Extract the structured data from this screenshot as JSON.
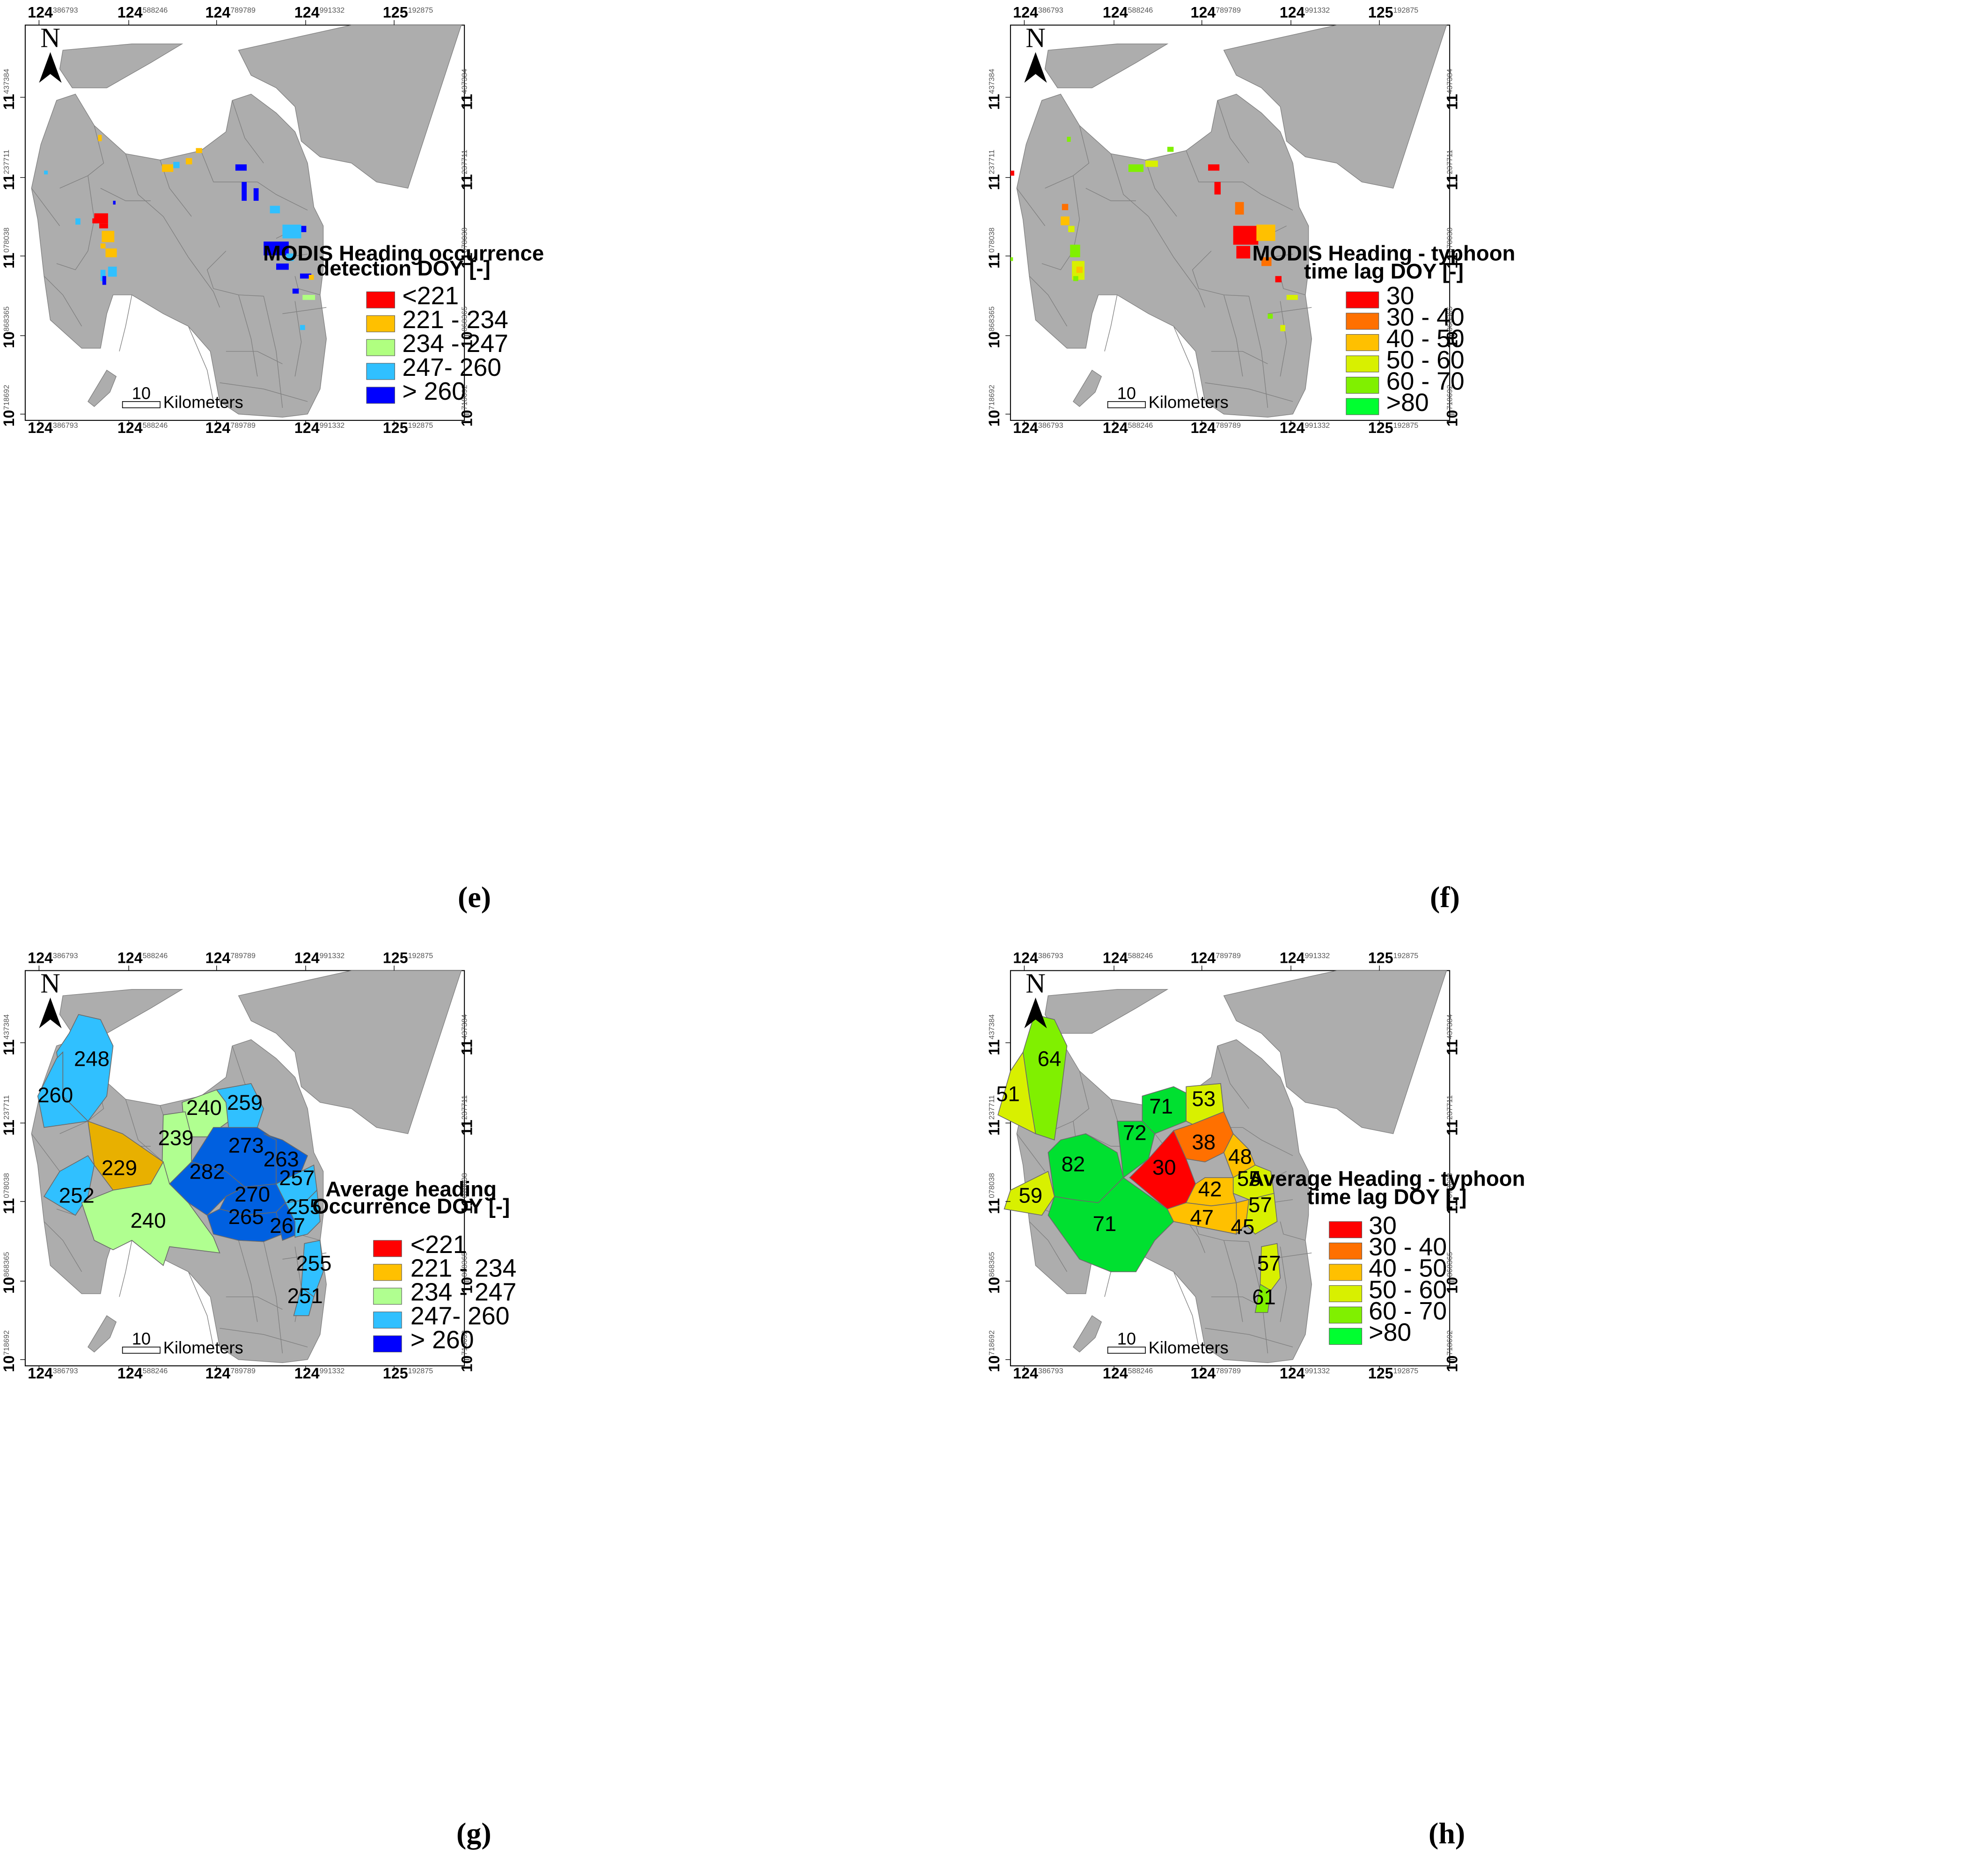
{
  "panels": {
    "e": {
      "caption": "(e)",
      "legend_title_1": "MODIS Heading occurrence",
      "legend_title_2": "detection DOY [-]",
      "classes": [
        {
          "label": "<221",
          "color": "#ff0000"
        },
        {
          "label": "221 - 234",
          "color": "#ffc000"
        },
        {
          "label": "234 - 247",
          "color": "#b0ff80"
        },
        {
          "label": "247- 260",
          "color": "#30c0ff"
        },
        {
          "label": "> 260",
          "color": "#0000ff"
        }
      ]
    },
    "f": {
      "caption": "(f)",
      "legend_title_1": "MODIS Heading - typhoon",
      "legend_title_2": "time lag DOY [-]",
      "classes": [
        {
          "label": "30",
          "color": "#ff0000"
        },
        {
          "label": "30 - 40",
          "color": "#ff7000"
        },
        {
          "label": "40 - 50",
          "color": "#ffc000"
        },
        {
          "label": "50 - 60",
          "color": "#d8f000"
        },
        {
          "label": "60 - 70",
          "color": "#80f000"
        },
        {
          "label": ">80",
          "color": "#00ff30"
        }
      ]
    },
    "g": {
      "caption": "(g)",
      "legend_title_1": "Average  heading",
      "legend_title_2": "Occurrence DOY [-]",
      "classes": [
        {
          "label": "<221",
          "color": "#ff0000"
        },
        {
          "label": "221 - 234",
          "color": "#ffc000"
        },
        {
          "label": "234 - 247",
          "color": "#b0ff90"
        },
        {
          "label": "247- 260",
          "color": "#30c0ff"
        },
        {
          "label": "> 260",
          "color": "#0000ff"
        }
      ],
      "regions": [
        "248",
        "260",
        "240",
        "259",
        "239",
        "273",
        "263",
        "229",
        "282",
        "257",
        "252",
        "270",
        "255",
        "240",
        "265",
        "267",
        "255",
        "251"
      ]
    },
    "h": {
      "caption": "(h)",
      "legend_title_1": "Average Heading - typhoon",
      "legend_title_2": "time lag DOY [-]",
      "classes": [
        {
          "label": "30",
          "color": "#ff0000"
        },
        {
          "label": "30 - 40",
          "color": "#ff7000"
        },
        {
          "label": "40 - 50",
          "color": "#ffc000"
        },
        {
          "label": "50 - 60",
          "color": "#d8f000"
        },
        {
          "label": "60 - 70",
          "color": "#80f000"
        },
        {
          "label": ">80",
          "color": "#00ff30"
        }
      ],
      "regions": [
        "64",
        "51",
        "71",
        "53",
        "72",
        "38",
        "30",
        "48",
        "82",
        "55",
        "59",
        "42",
        "57",
        "71",
        "47",
        "45",
        "57",
        "61"
      ]
    }
  },
  "common": {
    "north_label": "N",
    "scale_value": "10",
    "scale_unit": "Kilometers",
    "lon_ticks": [
      {
        "deg": "124",
        "min": "386793"
      },
      {
        "deg": "124",
        "min": "588246"
      },
      {
        "deg": "124",
        "min": "789789"
      },
      {
        "deg": "124",
        "min": "991332"
      },
      {
        "deg": "125",
        "min": "192875"
      }
    ],
    "lat_ticks": [
      {
        "deg": "11",
        "min": "437384"
      },
      {
        "deg": "11",
        "min": "237711"
      },
      {
        "deg": "11",
        "min": "078038"
      },
      {
        "deg": "10",
        "min": "868365"
      },
      {
        "deg": "10",
        "min": "718692"
      }
    ]
  },
  "colors": {
    "land": "#adadad",
    "boundary": "#808080",
    "sea": "#ffffff"
  }
}
